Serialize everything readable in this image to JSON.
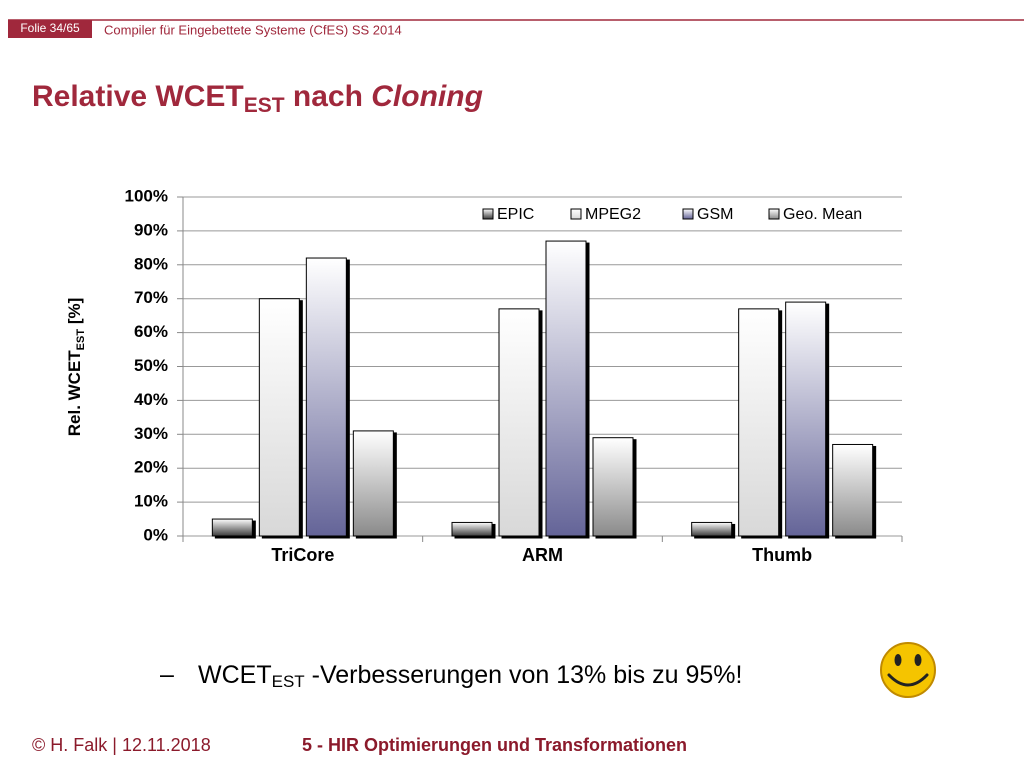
{
  "header": {
    "slide_number": "Folie 34/65",
    "course": "Compiler für Eingebettete Systeme (CfES) SS 2014"
  },
  "title": {
    "main": "Relative WCET",
    "sub": "EST",
    "middle": " nach ",
    "emphasis": "Cloning"
  },
  "chart_data": {
    "type": "bar",
    "y_label": {
      "main": "Rel. WCET",
      "sub": "EST",
      "unit": " [%]"
    },
    "categories": [
      "TriCore",
      "ARM",
      "Thumb"
    ],
    "series": [
      {
        "name": "EPIC",
        "color": "#3c3c3c",
        "values": [
          5,
          4,
          4
        ]
      },
      {
        "name": "MPEG2",
        "color": "#d8d8d8",
        "values": [
          70,
          67,
          67
        ]
      },
      {
        "name": "GSM",
        "color": "#646498",
        "values": [
          82,
          87,
          69
        ]
      },
      {
        "name": "Geo. Mean",
        "color": "#8a8a8a",
        "values": [
          31,
          29,
          27
        ]
      }
    ],
    "ylim": [
      0,
      100
    ],
    "yticks": [
      {
        "value": 0,
        "label": "0%"
      },
      {
        "value": 10,
        "label": "10%"
      },
      {
        "value": 20,
        "label": "20%"
      },
      {
        "value": 30,
        "label": "30%"
      },
      {
        "value": 40,
        "label": "40%"
      },
      {
        "value": 50,
        "label": "50%"
      },
      {
        "value": 60,
        "label": "60%"
      },
      {
        "value": 70,
        "label": "70%"
      },
      {
        "value": 80,
        "label": "80%"
      },
      {
        "value": 90,
        "label": "90%"
      },
      {
        "value": 100,
        "label": "100%"
      }
    ],
    "grid": true,
    "legend": "top-right"
  },
  "bullet": {
    "marker": "–",
    "main": "WCET",
    "sub": "EST",
    "rest": " -Verbesserungen von 13% bis zu 95%!"
  },
  "footer": {
    "author": "© H. Falk | 12.11.2018",
    "chapter": "5 - HIR Optimierungen und Transformationen"
  }
}
